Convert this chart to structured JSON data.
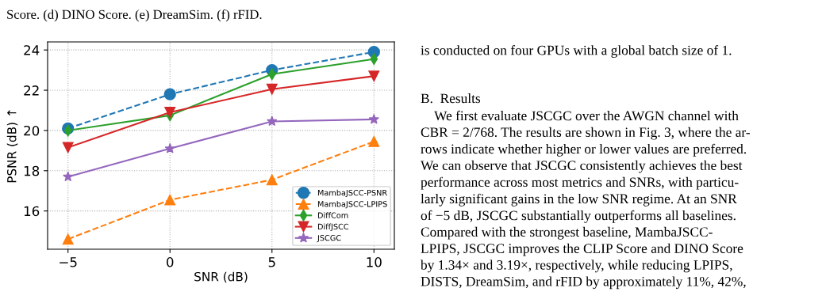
{
  "chart_data": {
    "type": "line",
    "xlabel": "SNR (dB)",
    "ylabel": "PSNR (dB) ↑",
    "x": [
      -5,
      0,
      5,
      10
    ],
    "series": [
      {
        "name": "MambaJSCC-PSNR",
        "color": "#1f77b4",
        "values": [
          20.1,
          21.8,
          23.0,
          23.9
        ],
        "marker": "circle",
        "line_style": "dashed"
      },
      {
        "name": "MambaJSCC-LPIPS",
        "color": "#ff7f0e",
        "values": [
          14.6,
          16.55,
          17.55,
          19.45
        ],
        "marker": "triangle",
        "line_style": "dashed"
      },
      {
        "name": "DiffCom",
        "color": "#2ca02c",
        "values": [
          20.0,
          20.75,
          22.8,
          23.55
        ],
        "marker": "diamond",
        "line_style": "solid"
      },
      {
        "name": "DiffJSCC",
        "color": "#d62728",
        "values": [
          19.15,
          20.9,
          22.05,
          22.7
        ],
        "marker": "triangle_down",
        "line_style": "solid"
      },
      {
        "name": "JSCGC",
        "color": "#9467bd",
        "values": [
          17.7,
          19.1,
          20.45,
          20.55
        ],
        "marker": "star",
        "line_style": "solid"
      }
    ],
    "xlim": [
      -6,
      11
    ],
    "ylim": [
      14.1,
      24.4
    ],
    "xticks": [
      {
        "value": -5,
        "label": "−5"
      },
      0,
      5,
      10
    ],
    "yticks": [
      16,
      18,
      20,
      22,
      24
    ],
    "grid": true,
    "legend": "bottom right",
    "annotations": [
      "Score. (d) DINO Score. (e) DreamSim. (f) rFID.",
      "is conducted on four GPUs with a global batch size of 1.",
      "B.  Results",
      "    We first evaluate JSCGC over the AWGN channel with\nCBR = 2/768. The results are shown in Fig. 3, where the ar-\nrows indicate whether higher or lower values are preferred.\nWe can observe that JSCGC consistently achieves the best\nperformance across most metrics and SNRs, with particu-\nlarly significant gains in the low SNR regime. At an SNR\nof −5 dB, JSCGC substantially outperforms all baselines.\nCompared with the strongest baseline, MambaJSCC-\nLPIPS, JSCGC improves the CLIP Score and DINO Score\nby 1.34× and 3.19×, respectively, while reducing LPIPS,\nDISTS, DreamSim, and rFID by approximately 11%, 42%,"
    ]
  }
}
